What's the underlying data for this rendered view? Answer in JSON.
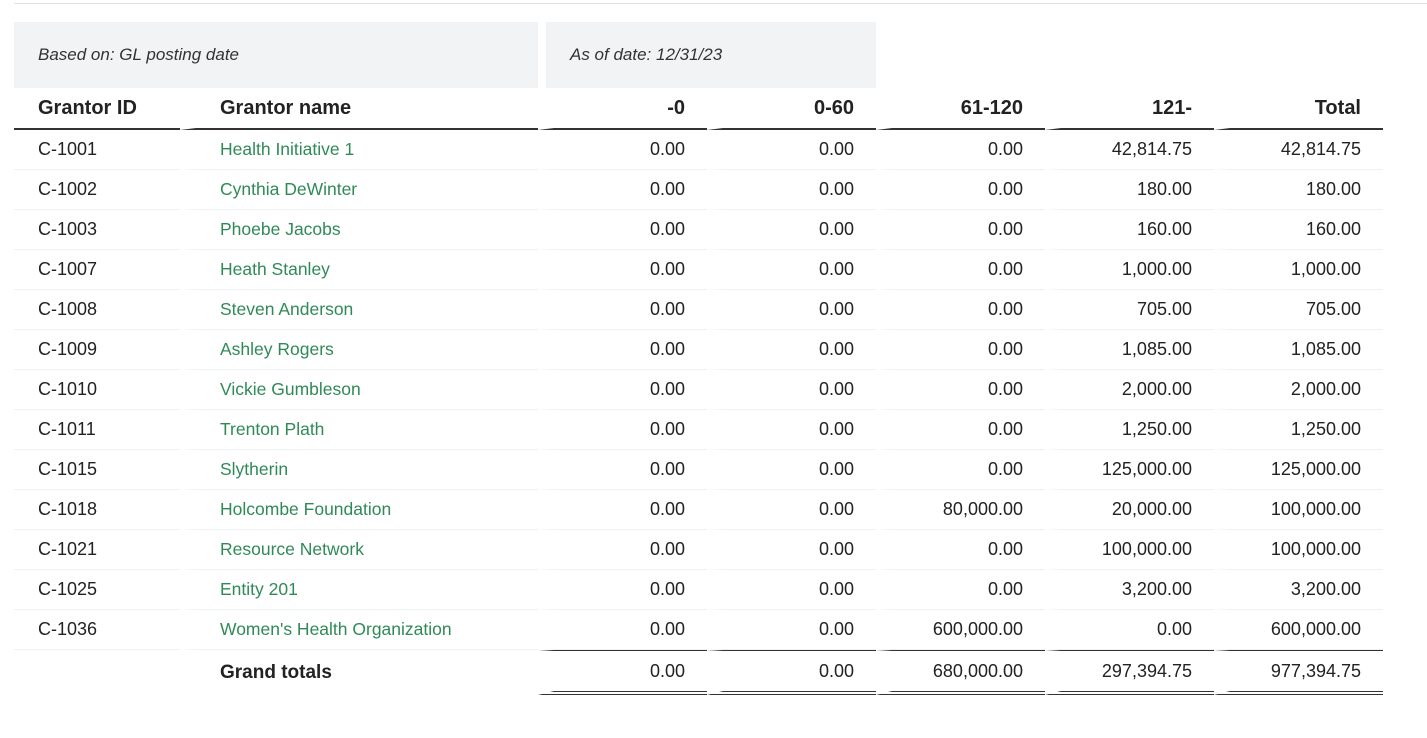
{
  "report": {
    "based_on": "Based on: GL posting date",
    "as_of": "As of date: 12/31/23",
    "columns": {
      "grantor_id": "Grantor ID",
      "grantor_name": "Grantor name",
      "b_minus0": "-0",
      "b_0_60": "0-60",
      "b_61_120": "61-120",
      "b_121": "121-",
      "total": "Total"
    },
    "rows": [
      {
        "id": "C-1001",
        "name": "Health Initiative 1",
        "b_minus0": "0.00",
        "b_0_60": "0.00",
        "b_61_120": "0.00",
        "b_121": "42,814.75",
        "total": "42,814.75"
      },
      {
        "id": "C-1002",
        "name": "Cynthia DeWinter",
        "b_minus0": "0.00",
        "b_0_60": "0.00",
        "b_61_120": "0.00",
        "b_121": "180.00",
        "total": "180.00"
      },
      {
        "id": "C-1003",
        "name": "Phoebe Jacobs",
        "b_minus0": "0.00",
        "b_0_60": "0.00",
        "b_61_120": "0.00",
        "b_121": "160.00",
        "total": "160.00"
      },
      {
        "id": "C-1007",
        "name": "Heath Stanley",
        "b_minus0": "0.00",
        "b_0_60": "0.00",
        "b_61_120": "0.00",
        "b_121": "1,000.00",
        "total": "1,000.00"
      },
      {
        "id": "C-1008",
        "name": "Steven Anderson",
        "b_minus0": "0.00",
        "b_0_60": "0.00",
        "b_61_120": "0.00",
        "b_121": "705.00",
        "total": "705.00"
      },
      {
        "id": "C-1009",
        "name": "Ashley Rogers",
        "b_minus0": "0.00",
        "b_0_60": "0.00",
        "b_61_120": "0.00",
        "b_121": "1,085.00",
        "total": "1,085.00"
      },
      {
        "id": "C-1010",
        "name": "Vickie Gumbleson",
        "b_minus0": "0.00",
        "b_0_60": "0.00",
        "b_61_120": "0.00",
        "b_121": "2,000.00",
        "total": "2,000.00"
      },
      {
        "id": "C-1011",
        "name": "Trenton Plath",
        "b_minus0": "0.00",
        "b_0_60": "0.00",
        "b_61_120": "0.00",
        "b_121": "1,250.00",
        "total": "1,250.00"
      },
      {
        "id": "C-1015",
        "name": "Slytherin",
        "b_minus0": "0.00",
        "b_0_60": "0.00",
        "b_61_120": "0.00",
        "b_121": "125,000.00",
        "total": "125,000.00"
      },
      {
        "id": "C-1018",
        "name": "Holcombe Foundation",
        "b_minus0": "0.00",
        "b_0_60": "0.00",
        "b_61_120": "80,000.00",
        "b_121": "20,000.00",
        "total": "100,000.00"
      },
      {
        "id": "C-1021",
        "name": "Resource Network",
        "b_minus0": "0.00",
        "b_0_60": "0.00",
        "b_61_120": "0.00",
        "b_121": "100,000.00",
        "total": "100,000.00"
      },
      {
        "id": "C-1025",
        "name": "Entity 201",
        "b_minus0": "0.00",
        "b_0_60": "0.00",
        "b_61_120": "0.00",
        "b_121": "3,200.00",
        "total": "3,200.00"
      },
      {
        "id": "C-1036",
        "name": "Women's Health Organization",
        "b_minus0": "0.00",
        "b_0_60": "0.00",
        "b_61_120": "600,000.00",
        "b_121": "0.00",
        "total": "600,000.00"
      }
    ],
    "totals": {
      "label": "Grand totals",
      "b_minus0": "0.00",
      "b_0_60": "0.00",
      "b_61_120": "680,000.00",
      "b_121": "297,394.75",
      "total": "977,394.75"
    }
  },
  "colors": {
    "link_green": "#2f8a57",
    "info_bg": "#f1f3f4",
    "rule": "#333333"
  }
}
